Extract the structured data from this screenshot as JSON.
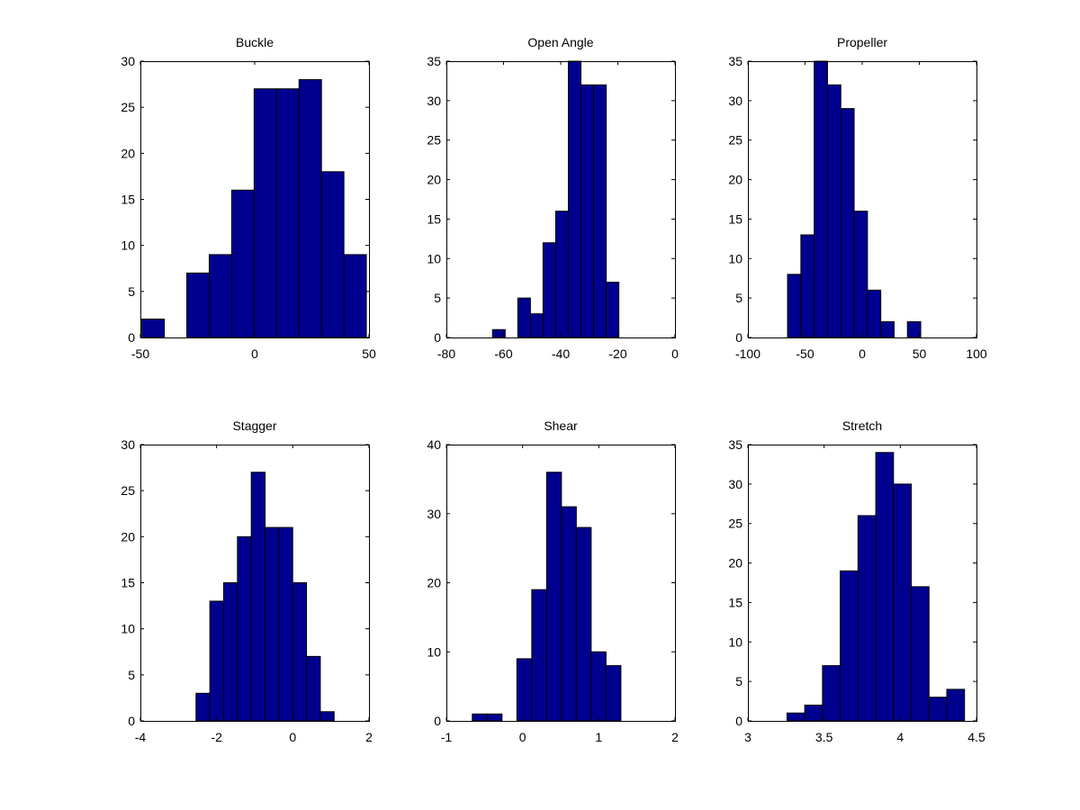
{
  "colors": {
    "bar": "#00008f",
    "edge": "#000000",
    "axis": "#000000"
  },
  "chart_data": [
    {
      "type": "bar",
      "title": "Buckle",
      "bin_start": -49.35,
      "bin_width": 9.82,
      "values": [
        2,
        0,
        7,
        9,
        16,
        27,
        27,
        28,
        18,
        9
      ],
      "xlim": [
        -50,
        50
      ],
      "ylim": [
        0,
        30
      ],
      "xticks": [
        -50,
        0,
        50
      ],
      "yticks": [
        0,
        5,
        10,
        15,
        20,
        25,
        30
      ],
      "grid": false
    },
    {
      "type": "bar",
      "title": "Open Angle",
      "bin_start": -63.85,
      "bin_width": 4.42,
      "values": [
        1,
        0,
        5,
        3,
        12,
        16,
        35,
        32,
        32,
        7
      ],
      "xlim": [
        -80,
        0
      ],
      "ylim": [
        0,
        35
      ],
      "xticks": [
        -80,
        -60,
        -40,
        -20,
        0
      ],
      "yticks": [
        0,
        5,
        10,
        15,
        20,
        25,
        30,
        35
      ],
      "grid": false
    },
    {
      "type": "bar",
      "title": "Propeller",
      "bin_start": -65.3,
      "bin_width": 11.65,
      "values": [
        8,
        13,
        35,
        32,
        29,
        16,
        6,
        2,
        0,
        2
      ],
      "xlim": [
        -100,
        100
      ],
      "ylim": [
        0,
        35
      ],
      "xticks": [
        -100,
        -50,
        0,
        50,
        100
      ],
      "yticks": [
        0,
        5,
        10,
        15,
        20,
        25,
        30,
        35
      ],
      "grid": false
    },
    {
      "type": "bar",
      "title": "Stagger",
      "bin_start": -2.54,
      "bin_width": 0.3625,
      "values": [
        3,
        13,
        15,
        20,
        27,
        21,
        21,
        15,
        7,
        1
      ],
      "xlim": [
        -4,
        2
      ],
      "ylim": [
        0,
        30
      ],
      "xticks": [
        -4,
        -2,
        0,
        2
      ],
      "yticks": [
        0,
        5,
        10,
        15,
        20,
        25,
        30
      ],
      "grid": false
    },
    {
      "type": "bar",
      "title": "Shear",
      "bin_start": -0.66,
      "bin_width": 0.195,
      "values": [
        1,
        1,
        0,
        9,
        19,
        36,
        31,
        28,
        10,
        8
      ],
      "xlim": [
        -1,
        2
      ],
      "ylim": [
        0,
        40
      ],
      "xticks": [
        -1,
        0,
        1,
        2
      ],
      "yticks": [
        0,
        10,
        20,
        30,
        40
      ],
      "grid": false
    },
    {
      "type": "bar",
      "title": "Stretch",
      "bin_start": 3.2565,
      "bin_width": 0.1165,
      "values": [
        1,
        2,
        7,
        19,
        26,
        34,
        30,
        17,
        3,
        4
      ],
      "xlim": [
        3,
        4.5
      ],
      "ylim": [
        0,
        35
      ],
      "xticks": [
        3,
        3.5,
        4,
        4.5
      ],
      "yticks": [
        0,
        5,
        10,
        15,
        20,
        25,
        30,
        35
      ],
      "grid": false
    }
  ]
}
